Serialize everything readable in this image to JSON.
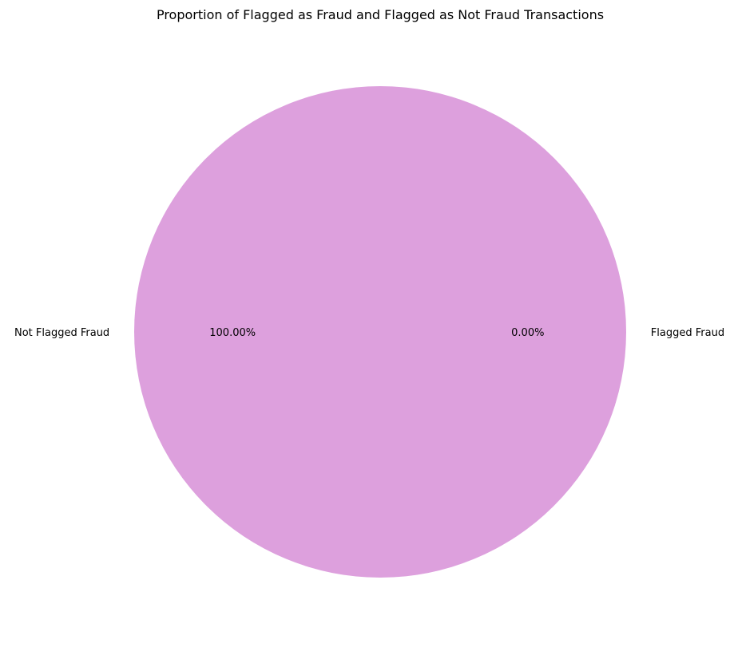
{
  "chart_data": {
    "type": "pie",
    "title": "Proportion of Flagged as Fraud and Flagged as Not Fraud Transactions",
    "labels": [
      "Flagged Fraud",
      "Not Flagged Fraud"
    ],
    "values": [
      0.0,
      100.0
    ],
    "percent_labels": [
      "0.00%",
      "100.00%"
    ],
    "colors": [
      "#4682b4",
      "#dda0dd"
    ]
  }
}
